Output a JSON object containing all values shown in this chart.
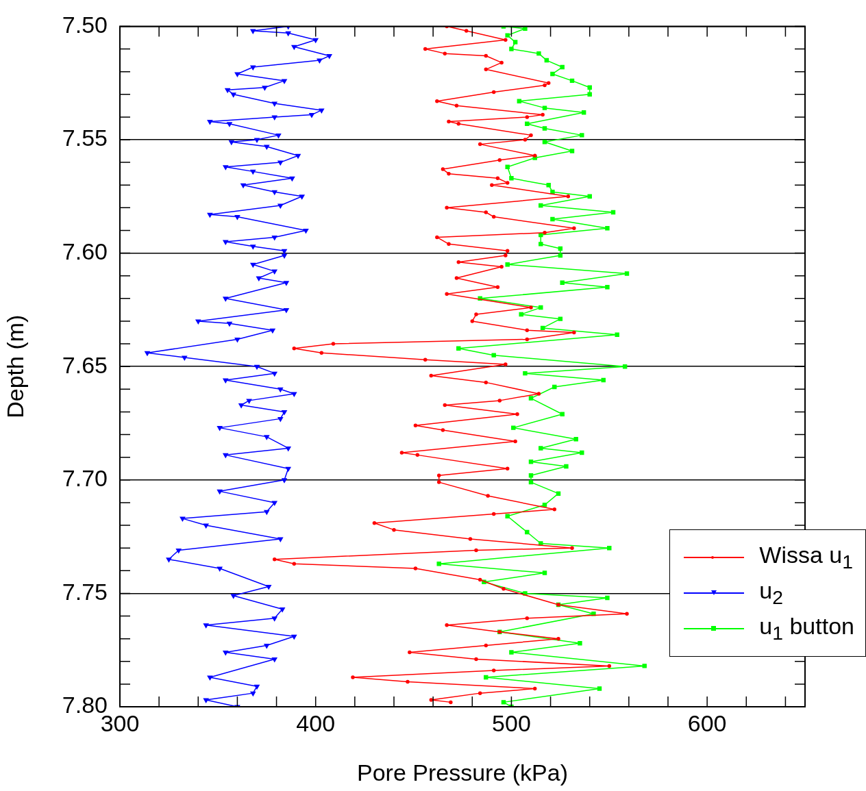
{
  "chart_data": {
    "type": "line",
    "xlabel": "Pore Pressure (kPa)",
    "ylabel": "Depth (m)",
    "xlim": [
      300,
      650
    ],
    "ylim": [
      7.8,
      7.5
    ],
    "xticks": [
      300,
      {
        "value": 320,
        "label": null
      },
      {
        "value": 340,
        "label": null
      },
      {
        "value": 360,
        "label": null
      },
      {
        "value": 380,
        "label": null
      },
      400,
      {
        "value": 420,
        "label": null
      },
      {
        "value": 440,
        "label": null
      },
      {
        "value": 460,
        "label": null
      },
      {
        "value": 480,
        "label": null
      },
      500,
      {
        "value": 520,
        "label": null
      },
      {
        "value": 540,
        "label": null
      },
      {
        "value": 560,
        "label": null
      },
      {
        "value": 580,
        "label": null
      },
      600,
      {
        "value": 620,
        "label": null
      },
      {
        "value": 640,
        "label": null
      }
    ],
    "yticks": [
      {
        "value": 7.5,
        "label": "7.50"
      },
      {
        "value": 7.51,
        "label": null
      },
      {
        "value": 7.52,
        "label": null
      },
      {
        "value": 7.53,
        "label": null
      },
      {
        "value": 7.54,
        "label": null
      },
      {
        "value": 7.55,
        "label": "7.55"
      },
      {
        "value": 7.56,
        "label": null
      },
      {
        "value": 7.57,
        "label": null
      },
      {
        "value": 7.58,
        "label": null
      },
      {
        "value": 7.59,
        "label": null
      },
      {
        "value": 7.6,
        "label": "7.60"
      },
      {
        "value": 7.61,
        "label": null
      },
      {
        "value": 7.62,
        "label": null
      },
      {
        "value": 7.63,
        "label": null
      },
      {
        "value": 7.64,
        "label": null
      },
      {
        "value": 7.65,
        "label": "7.65"
      },
      {
        "value": 7.66,
        "label": null
      },
      {
        "value": 7.67,
        "label": null
      },
      {
        "value": 7.68,
        "label": null
      },
      {
        "value": 7.69,
        "label": null
      },
      {
        "value": 7.7,
        "label": "7.70"
      },
      {
        "value": 7.71,
        "label": null
      },
      {
        "value": 7.72,
        "label": null
      },
      {
        "value": 7.73,
        "label": null
      },
      {
        "value": 7.74,
        "label": null
      },
      {
        "value": 7.75,
        "label": "7.75"
      },
      {
        "value": 7.76,
        "label": null
      },
      {
        "value": 7.77,
        "label": null
      },
      {
        "value": 7.78,
        "label": null
      },
      {
        "value": 7.79,
        "label": null
      },
      {
        "value": 7.8,
        "label": "7.80"
      }
    ],
    "grid": "y",
    "legend": "bottom right",
    "series": [
      {
        "name": "Wissa u$_{1}$",
        "color": "#ff0000",
        "marker": "circle",
        "x": [
          467,
          477,
          497,
          456,
          466,
          487,
          495,
          487,
          519,
          517,
          491,
          462,
          472,
          516,
          508,
          468,
          473,
          510,
          507,
          484,
          512,
          494,
          465,
          468,
          493,
          498,
          490,
          529,
          467,
          487,
          491,
          532,
          517,
          462,
          468,
          498,
          497,
          473,
          495,
          472,
          493,
          467,
          510,
          482,
          480,
          508,
          532,
          508,
          409,
          389,
          403,
          456,
          497,
          459,
          487,
          514,
          494,
          466,
          503,
          451,
          465,
          502,
          444,
          452,
          498,
          463,
          463,
          488,
          522,
          491,
          430,
          440,
          479,
          531,
          482,
          379,
          389,
          451,
          484,
          496,
          524,
          559,
          508,
          467,
          494,
          524,
          487,
          448,
          482,
          550,
          491,
          419,
          447,
          512,
          484,
          459,
          469
        ],
        "values": [
          7.5,
          7.502,
          7.506,
          7.51,
          7.512,
          7.513,
          7.516,
          7.519,
          7.525,
          7.526,
          7.529,
          7.533,
          7.535,
          7.539,
          7.54,
          7.542,
          7.543,
          7.548,
          7.55,
          7.552,
          7.557,
          7.559,
          7.563,
          7.565,
          7.567,
          7.569,
          7.57,
          7.575,
          7.58,
          7.582,
          7.584,
          7.589,
          7.591,
          7.593,
          7.596,
          7.599,
          7.601,
          7.604,
          7.606,
          7.611,
          7.615,
          7.618,
          7.624,
          7.627,
          7.63,
          7.634,
          7.635,
          7.638,
          7.64,
          7.642,
          7.644,
          7.647,
          7.649,
          7.654,
          7.657,
          7.662,
          7.665,
          7.667,
          7.671,
          7.676,
          7.678,
          7.683,
          7.688,
          7.689,
          7.695,
          7.698,
          7.701,
          7.707,
          7.713,
          7.715,
          7.719,
          7.722,
          7.726,
          7.73,
          7.731,
          7.735,
          7.737,
          7.739,
          7.744,
          7.748,
          7.755,
          7.759,
          7.761,
          7.764,
          7.767,
          7.77,
          7.773,
          7.776,
          7.779,
          7.782,
          7.784,
          7.787,
          7.789,
          7.792,
          7.794,
          7.797,
          7.798
        ]
      },
      {
        "name": "u$_{2}$",
        "color": "#0000ff",
        "marker": "triangle",
        "x": [
          386,
          368,
          386,
          400,
          389,
          407,
          402,
          368,
          360,
          384,
          374,
          355,
          358,
          379,
          403,
          398,
          379,
          346,
          356,
          381,
          370,
          357,
          375,
          391,
          382,
          354,
          368,
          388,
          363,
          379,
          393,
          382,
          346,
          360,
          395,
          379,
          354,
          368,
          384,
          384,
          368,
          379,
          371,
          385,
          354,
          385,
          340,
          356,
          378,
          360,
          314,
          333,
          370,
          379,
          354,
          382,
          389,
          366,
          362,
          384,
          382,
          351,
          375,
          386,
          354,
          386,
          384,
          351,
          379,
          375,
          332,
          344,
          382,
          330,
          325,
          351,
          376,
          358,
          383,
          379,
          344,
          389,
          375,
          354,
          379,
          346,
          370,
          368,
          344,
          360
        ],
        "values": [
          7.5,
          7.502,
          7.503,
          7.506,
          7.509,
          7.513,
          7.515,
          7.518,
          7.521,
          7.524,
          7.527,
          7.528,
          7.53,
          7.534,
          7.537,
          7.539,
          7.54,
          7.542,
          7.543,
          7.548,
          7.55,
          7.551,
          7.553,
          7.557,
          7.56,
          7.562,
          7.564,
          7.567,
          7.57,
          7.573,
          7.575,
          7.579,
          7.583,
          7.584,
          7.59,
          7.593,
          7.595,
          7.597,
          7.599,
          7.601,
          7.605,
          7.608,
          7.611,
          7.613,
          7.62,
          7.625,
          7.63,
          7.631,
          7.634,
          7.638,
          7.644,
          7.646,
          7.65,
          7.653,
          7.656,
          7.66,
          7.662,
          7.665,
          7.667,
          7.67,
          7.673,
          7.677,
          7.681,
          7.686,
          7.689,
          7.695,
          7.7,
          7.705,
          7.71,
          7.714,
          7.717,
          7.72,
          7.726,
          7.731,
          7.735,
          7.739,
          7.747,
          7.751,
          7.757,
          7.761,
          7.764,
          7.769,
          7.773,
          7.776,
          7.779,
          7.787,
          7.791,
          7.794,
          7.797,
          7.8
        ]
      },
      {
        "name": "u$_{1}$ button",
        "color": "#00ff00",
        "marker": "square",
        "x": [
          496,
          507,
          498,
          502,
          500,
          514,
          518,
          526,
          521,
          531,
          540,
          540,
          504,
          517,
          537,
          508,
          517,
          536,
          517,
          531,
          512,
          498,
          500,
          519,
          521,
          540,
          515,
          552,
          521,
          549,
          515,
          515,
          525,
          525,
          498,
          559,
          526,
          549,
          484,
          515,
          505,
          525,
          516,
          554,
          473,
          491,
          558,
          507,
          547,
          522,
          510,
          526,
          501,
          533,
          515,
          536,
          510,
          528,
          510,
          510,
          524,
          517,
          498,
          508,
          515,
          550,
          463,
          517,
          486,
          507,
          549,
          524,
          542,
          494,
          535,
          500,
          568,
          487,
          545,
          496,
          500
        ],
        "values": [
          7.5,
          7.501,
          7.504,
          7.507,
          7.51,
          7.512,
          7.515,
          7.518,
          7.521,
          7.524,
          7.527,
          7.53,
          7.533,
          7.536,
          7.538,
          7.543,
          7.545,
          7.548,
          7.551,
          7.555,
          7.558,
          7.562,
          7.567,
          7.57,
          7.573,
          7.575,
          7.579,
          7.582,
          7.585,
          7.589,
          7.592,
          7.596,
          7.598,
          7.601,
          7.605,
          7.609,
          7.613,
          7.615,
          7.62,
          7.624,
          7.627,
          7.629,
          7.633,
          7.636,
          7.642,
          7.645,
          7.65,
          7.653,
          7.656,
          7.659,
          7.664,
          7.671,
          7.677,
          7.682,
          7.686,
          7.688,
          7.692,
          7.694,
          7.698,
          7.701,
          7.706,
          7.711,
          7.716,
          7.723,
          7.728,
          7.73,
          7.737,
          7.741,
          7.745,
          7.75,
          7.752,
          7.755,
          7.759,
          7.767,
          7.772,
          7.776,
          7.782,
          7.787,
          7.792,
          7.798,
          7.8
        ]
      }
    ]
  }
}
